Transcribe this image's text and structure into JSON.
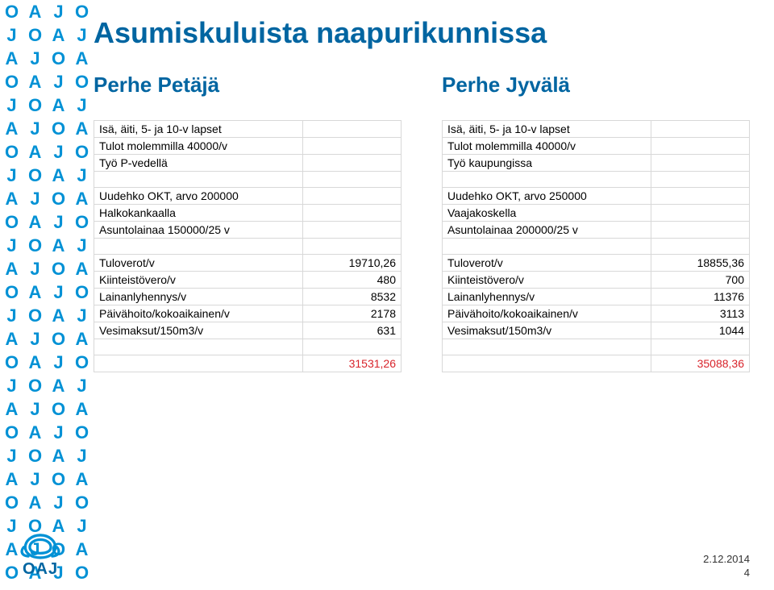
{
  "title": "Asumiskuluista naapurikunnissa",
  "colors": {
    "heading": "#0065a1",
    "pattern": "#0091d5",
    "red": "#d8232a",
    "border": "#d8d8d8"
  },
  "left": {
    "title": "Perhe Petäjä",
    "rows": [
      {
        "label": "Isä, äiti, 5- ja 10-v lapset",
        "value": ""
      },
      {
        "label": "Tulot molemmilla 40000/v",
        "value": ""
      },
      {
        "label": "Työ P-vedellä",
        "value": ""
      },
      {
        "label": "",
        "value": ""
      },
      {
        "label": "Uudehko OKT, arvo 200000",
        "value": ""
      },
      {
        "label": "Halkokankaalla",
        "value": ""
      },
      {
        "label": "Asuntolainaa 150000/25 v",
        "value": ""
      },
      {
        "label": "",
        "value": ""
      },
      {
        "label": "Tuloverot/v",
        "value": "19710,26"
      },
      {
        "label": "Kiinteistövero/v",
        "value": "480"
      },
      {
        "label": "Lainanlyhennys/v",
        "value": "8532"
      },
      {
        "label": "Päivähoito/kokoaikainen/v",
        "value": "2178"
      },
      {
        "label": "Vesimaksut/150m3/v",
        "value": "631"
      },
      {
        "label": "",
        "value": ""
      },
      {
        "label": "",
        "value": "31531,26",
        "red": true
      }
    ]
  },
  "right": {
    "title": "Perhe Jyvälä",
    "rows": [
      {
        "label": "Isä, äiti, 5- ja 10-v lapset",
        "value": ""
      },
      {
        "label": "Tulot molemmilla 40000/v",
        "value": ""
      },
      {
        "label": "Työ kaupungissa",
        "value": ""
      },
      {
        "label": "",
        "value": ""
      },
      {
        "label": "Uudehko OKT, arvo 250000",
        "value": ""
      },
      {
        "label": "Vaajakoskella",
        "value": ""
      },
      {
        "label": "Asuntolainaa 200000/25 v",
        "value": ""
      },
      {
        "label": "",
        "value": ""
      },
      {
        "label": "Tuloverot/v",
        "value": "18855,36"
      },
      {
        "label": "Kiinteistövero/v",
        "value": "700"
      },
      {
        "label": "Lainanlyhennys/v",
        "value": "11376"
      },
      {
        "label": "Päivähoito/kokoaikainen/v",
        "value": "3113"
      },
      {
        "label": "Vesimaksut/150m3/v",
        "value": "1044"
      },
      {
        "label": "",
        "value": ""
      },
      {
        "label": "",
        "value": "35088,36",
        "red": true
      }
    ]
  },
  "footer": {
    "date": "2.12.2014",
    "page": "4"
  },
  "logo": {
    "text": "OAJ"
  },
  "pattern_letters": [
    "O",
    "A",
    "J"
  ]
}
